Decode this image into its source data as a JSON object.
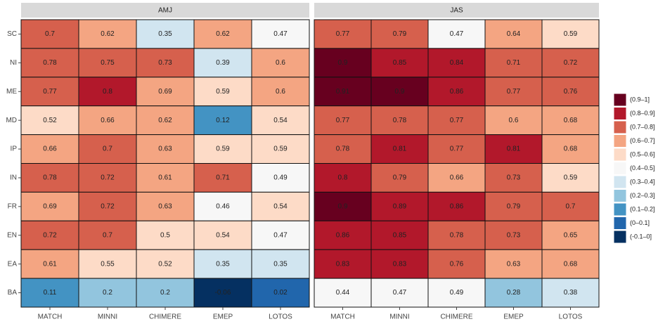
{
  "chart_data": {
    "type": "heatmap",
    "x_categories": [
      "MATCH",
      "MINNI",
      "CHIMERE",
      "EMEP",
      "LOTOS"
    ],
    "y_categories": [
      "SC",
      "NI",
      "ME",
      "MD",
      "IP",
      "IN",
      "FR",
      "EN",
      "EA",
      "BA"
    ],
    "legend": [
      {
        "label": "(0.9–1]",
        "range": [
          0.9,
          1
        ],
        "color": "#67001f"
      },
      {
        "label": "(0.8–0.9]",
        "range": [
          0.8,
          0.9
        ],
        "color": "#b2182b"
      },
      {
        "label": "(0.7–0.8]",
        "range": [
          0.7,
          0.8
        ],
        "color": "#d6604d"
      },
      {
        "label": "(0.6–0.7]",
        "range": [
          0.6,
          0.7
        ],
        "color": "#f4a582"
      },
      {
        "label": "(0.5–0.6]",
        "range": [
          0.5,
          0.6
        ],
        "color": "#fddbc7"
      },
      {
        "label": "(0.4–0.5]",
        "range": [
          0.4,
          0.5
        ],
        "color": "#f7f7f7"
      },
      {
        "label": "(0.3–0.4]",
        "range": [
          0.3,
          0.4
        ],
        "color": "#d1e5f0"
      },
      {
        "label": "(0.2–0.3]",
        "range": [
          0.2,
          0.3
        ],
        "color": "#92c5de"
      },
      {
        "label": "(0.1–0.2]",
        "range": [
          0.1,
          0.2
        ],
        "color": "#4393c3"
      },
      {
        "label": "(0–0.1]",
        "range": [
          0,
          0.1
        ],
        "color": "#2166ac"
      },
      {
        "label": "(-0.1–0]",
        "range": [
          -0.1,
          0
        ],
        "color": "#053061"
      }
    ],
    "panels": [
      {
        "title": "AMJ",
        "values": [
          [
            0.7,
            0.62,
            0.35,
            0.62,
            0.47
          ],
          [
            0.78,
            0.75,
            0.73,
            0.39,
            0.6
          ],
          [
            0.77,
            0.8,
            0.69,
            0.59,
            0.6
          ],
          [
            0.52,
            0.66,
            0.62,
            0.12,
            0.54
          ],
          [
            0.66,
            0.7,
            0.63,
            0.59,
            0.59
          ],
          [
            0.78,
            0.72,
            0.61,
            0.71,
            0.49
          ],
          [
            0.69,
            0.72,
            0.63,
            0.46,
            0.54
          ],
          [
            0.72,
            0.7,
            0.5,
            0.54,
            0.47
          ],
          [
            0.61,
            0.55,
            0.52,
            0.35,
            0.35
          ],
          [
            0.11,
            0.2,
            0.2,
            -0.06,
            0.02
          ]
        ]
      },
      {
        "title": "JAS",
        "values": [
          [
            0.77,
            0.79,
            0.47,
            0.64,
            0.59
          ],
          [
            0.9,
            0.85,
            0.84,
            0.71,
            0.72
          ],
          [
            0.91,
            0.9,
            0.86,
            0.77,
            0.76
          ],
          [
            0.77,
            0.78,
            0.77,
            0.6,
            0.68
          ],
          [
            0.78,
            0.81,
            0.77,
            0.81,
            0.68
          ],
          [
            0.8,
            0.79,
            0.66,
            0.73,
            0.59
          ],
          [
            0.9,
            0.89,
            0.86,
            0.79,
            0.7
          ],
          [
            0.86,
            0.85,
            0.78,
            0.73,
            0.65
          ],
          [
            0.83,
            0.83,
            0.76,
            0.63,
            0.68
          ],
          [
            0.44,
            0.47,
            0.49,
            0.28,
            0.38
          ]
        ]
      }
    ]
  }
}
